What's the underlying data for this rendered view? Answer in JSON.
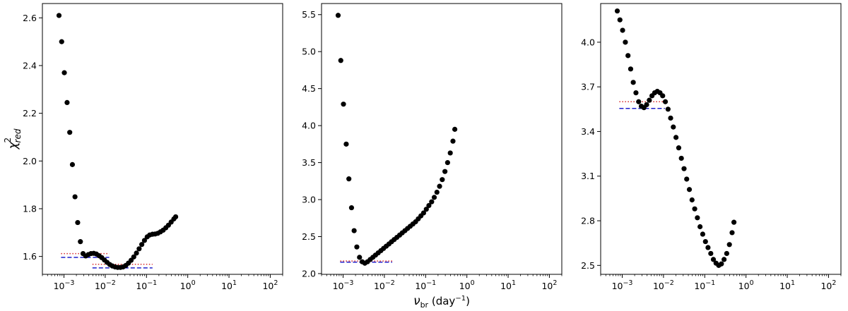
{
  "figure": {
    "ylabel_symbol": "χ",
    "ylabel_sup": "2",
    "ylabel_sub": "red",
    "xlabel_main": "ν",
    "xlabel_sub": "br",
    "xlabel_unit": " (day",
    "xlabel_unit_exp": "−1",
    "xlabel_close": ")"
  },
  "chart_data": [
    {
      "type": "scatter",
      "xscale": "log",
      "xlim": [
        0.0003,
        200
      ],
      "ylim": [
        1.525,
        2.66
      ],
      "xticks": [
        0.001,
        0.01,
        0.1,
        1,
        10,
        100
      ],
      "xtick_base": "10",
      "xtick_exps": [
        "−3",
        "−2",
        "−1",
        "0",
        "1",
        "2"
      ],
      "yticks": [
        1.6,
        1.8,
        2.0,
        2.2,
        2.4,
        2.6
      ],
      "ytick_labels": [
        "1.6",
        "1.8",
        "2.0",
        "2.2",
        "2.4",
        "2.6"
      ],
      "marker_color": "#000000",
      "series": [
        {
          "x": [
            0.000758,
            0.000879,
            0.00102,
            0.00119,
            0.00138,
            0.0016,
            0.00185,
            0.00215,
            0.0025,
            0.0029,
            0.00336,
            0.0039,
            0.00453,
            0.00526,
            0.00611,
            0.00709,
            0.00823,
            0.00955,
            0.0111,
            0.0129,
            0.0149,
            0.0173,
            0.0201,
            0.0234,
            0.0271,
            0.0315,
            0.0365,
            0.0424,
            0.0492,
            0.0571,
            0.0663,
            0.0769,
            0.0893,
            0.104,
            0.12,
            0.14,
            0.162,
            0.188,
            0.218,
            0.253,
            0.294,
            0.341,
            0.396,
            0.46,
            0.51
          ],
          "y": [
            2.61,
            2.5,
            2.37,
            2.245,
            2.12,
            1.985,
            1.85,
            1.742,
            1.662,
            1.612,
            1.602,
            1.608,
            1.612,
            1.613,
            1.61,
            1.603,
            1.595,
            1.585,
            1.575,
            1.566,
            1.56,
            1.556,
            1.554,
            1.554,
            1.556,
            1.562,
            1.572,
            1.584,
            1.598,
            1.614,
            1.632,
            1.65,
            1.667,
            1.682,
            1.69,
            1.693,
            1.694,
            1.697,
            1.703,
            1.71,
            1.72,
            1.731,
            1.744,
            1.757,
            1.766
          ]
        }
      ],
      "lines": [
        {
          "style": "dotted",
          "color": "#d62728",
          "y": 1.612,
          "x_range": [
            0.00085,
            0.0125
          ]
        },
        {
          "style": "dashed",
          "color": "#1f1fcc",
          "y": 1.596,
          "x_range": [
            0.00085,
            0.0125
          ]
        },
        {
          "style": "dotted",
          "color": "#d62728",
          "y": 1.567,
          "x_range": [
            0.0049,
            0.14
          ]
        },
        {
          "style": "dashed",
          "color": "#1f1fcc",
          "y": 1.552,
          "x_range": [
            0.0049,
            0.14
          ]
        }
      ]
    },
    {
      "type": "scatter",
      "xscale": "log",
      "xlim": [
        0.0003,
        200
      ],
      "ylim": [
        1.99,
        5.65
      ],
      "xticks": [
        0.001,
        0.01,
        0.1,
        1,
        10,
        100
      ],
      "xtick_base": "10",
      "xtick_exps": [
        "−3",
        "−2",
        "−1",
        "0",
        "1",
        "2"
      ],
      "yticks": [
        2.0,
        2.5,
        3.0,
        3.5,
        4.0,
        4.5,
        5.0,
        5.5
      ],
      "ytick_labels": [
        "2.0",
        "2.5",
        "3.0",
        "3.5",
        "4.0",
        "4.5",
        "5.0",
        "5.5"
      ],
      "marker_color": "#000000",
      "series": [
        {
          "x": [
            0.000758,
            0.000879,
            0.00102,
            0.00119,
            0.00138,
            0.0016,
            0.00185,
            0.00215,
            0.0025,
            0.0029,
            0.00336,
            0.0039,
            0.00453,
            0.00526,
            0.00611,
            0.00709,
            0.00823,
            0.00955,
            0.0111,
            0.0129,
            0.0149,
            0.0173,
            0.0201,
            0.0234,
            0.0271,
            0.0315,
            0.0365,
            0.0424,
            0.0492,
            0.0571,
            0.0663,
            0.0769,
            0.0893,
            0.104,
            0.12,
            0.14,
            0.162,
            0.188,
            0.218,
            0.253,
            0.294,
            0.341,
            0.396,
            0.46,
            0.51
          ],
          "y": [
            5.49,
            4.88,
            4.29,
            3.75,
            3.28,
            2.89,
            2.58,
            2.36,
            2.22,
            2.16,
            2.14,
            2.16,
            2.19,
            2.22,
            2.25,
            2.28,
            2.31,
            2.34,
            2.37,
            2.4,
            2.43,
            2.46,
            2.49,
            2.52,
            2.55,
            2.58,
            2.61,
            2.64,
            2.67,
            2.7,
            2.74,
            2.78,
            2.82,
            2.87,
            2.92,
            2.97,
            3.03,
            3.1,
            3.18,
            3.27,
            3.38,
            3.5,
            3.63,
            3.79,
            3.95
          ]
        }
      ],
      "lines": [
        {
          "style": "dotted",
          "color": "#d62728",
          "y": 2.17,
          "x_range": [
            0.00085,
            0.0155
          ]
        },
        {
          "style": "dashed",
          "color": "#1f1fcc",
          "y": 2.155,
          "x_range": [
            0.00085,
            0.0155
          ]
        }
      ]
    },
    {
      "type": "scatter",
      "xscale": "log",
      "xlim": [
        0.0003,
        200
      ],
      "ylim": [
        2.44,
        4.26
      ],
      "xticks": [
        0.001,
        0.01,
        0.1,
        1,
        10,
        100
      ],
      "xtick_base": "10",
      "xtick_exps": [
        "−3",
        "−2",
        "−1",
        "0",
        "1",
        "2"
      ],
      "yticks": [
        2.5,
        2.8,
        3.1,
        3.4,
        3.7,
        4.0
      ],
      "ytick_labels": [
        "2.5",
        "2.8",
        "3.1",
        "3.4",
        "3.7",
        "4.0"
      ],
      "marker_color": "#000000",
      "series": [
        {
          "x": [
            0.000758,
            0.000879,
            0.00102,
            0.00119,
            0.00138,
            0.0016,
            0.00185,
            0.00215,
            0.0025,
            0.0029,
            0.00336,
            0.0039,
            0.00453,
            0.00526,
            0.00611,
            0.00709,
            0.00823,
            0.00955,
            0.0111,
            0.0129,
            0.0149,
            0.0173,
            0.0201,
            0.0234,
            0.0271,
            0.0315,
            0.0365,
            0.0424,
            0.0492,
            0.0571,
            0.0663,
            0.0769,
            0.0893,
            0.104,
            0.12,
            0.14,
            0.162,
            0.188,
            0.218,
            0.253,
            0.294,
            0.341,
            0.396,
            0.46,
            0.51
          ],
          "y": [
            4.21,
            4.15,
            4.08,
            4.0,
            3.91,
            3.82,
            3.73,
            3.66,
            3.6,
            3.57,
            3.56,
            3.58,
            3.61,
            3.64,
            3.66,
            3.67,
            3.66,
            3.64,
            3.6,
            3.55,
            3.49,
            3.43,
            3.36,
            3.29,
            3.22,
            3.15,
            3.08,
            3.01,
            2.94,
            2.88,
            2.82,
            2.76,
            2.71,
            2.66,
            2.62,
            2.58,
            2.54,
            2.515,
            2.5,
            2.51,
            2.54,
            2.58,
            2.64,
            2.72,
            2.79
          ]
        }
      ],
      "lines": [
        {
          "style": "dotted",
          "color": "#d62728",
          "y": 3.6,
          "x_range": [
            0.00085,
            0.0108
          ]
        },
        {
          "style": "dashed",
          "color": "#1f1fcc",
          "y": 3.555,
          "x_range": [
            0.00085,
            0.0108
          ]
        }
      ]
    }
  ]
}
